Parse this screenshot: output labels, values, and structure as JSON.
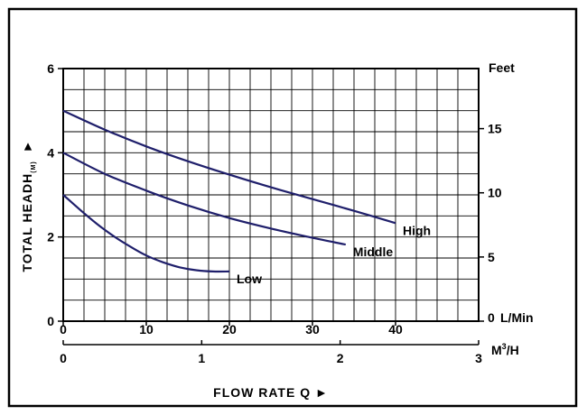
{
  "chart_data": {
    "type": "line",
    "xlabel": "FLOW RATE Q",
    "ylabel_main": "TOTAL HEADH",
    "ylabel_sub": "(M)",
    "left_axis": {
      "unit": "M",
      "range": [
        0,
        6
      ],
      "ticks": [
        {
          "value": 0,
          "label": "0"
        },
        {
          "value": 2,
          "label": "2"
        },
        {
          "value": 4,
          "label": "4"
        },
        {
          "value": 6,
          "label": "6"
        }
      ]
    },
    "right_axis": {
      "unit": "Feet",
      "range_ft": [
        0,
        19.68
      ],
      "ticks": [
        {
          "value": 0,
          "label": "0"
        },
        {
          "value": 5,
          "label": "5"
        },
        {
          "value": 10,
          "label": "10"
        },
        {
          "value": 15,
          "label": "15"
        }
      ]
    },
    "x_lmin_axis": {
      "unit": "L/Min",
      "range": [
        0,
        50
      ],
      "ticks": [
        {
          "value": 0,
          "label": "0"
        },
        {
          "value": 10,
          "label": "10"
        },
        {
          "value": 20,
          "label": "20"
        },
        {
          "value": 30,
          "label": "30"
        },
        {
          "value": 40,
          "label": "40"
        }
      ]
    },
    "x_m3h_axis": {
      "unit_main": "M",
      "unit_sup": "3",
      "unit_tail": "/H",
      "range": [
        0,
        3
      ],
      "ticks": [
        {
          "value": 0,
          "label": "0"
        },
        {
          "value": 1,
          "label": "1"
        },
        {
          "value": 2,
          "label": "2"
        },
        {
          "value": 3,
          "label": "3"
        }
      ]
    },
    "grid": true,
    "series": [
      {
        "name": "High",
        "x": [
          0,
          5,
          10,
          15,
          20,
          25,
          30,
          35,
          40
        ],
        "y": [
          5.0,
          4.55,
          4.15,
          3.8,
          3.48,
          3.18,
          2.9,
          2.62,
          2.33
        ]
      },
      {
        "name": "Middle",
        "x": [
          0,
          5,
          10,
          15,
          20,
          25,
          30,
          34
        ],
        "y": [
          4.0,
          3.5,
          3.1,
          2.75,
          2.45,
          2.2,
          1.98,
          1.82
        ]
      },
      {
        "name": "Low",
        "x": [
          0,
          2,
          4,
          6,
          8,
          10,
          12,
          14,
          16,
          18,
          20
        ],
        "y": [
          3.0,
          2.65,
          2.32,
          2.03,
          1.78,
          1.56,
          1.4,
          1.28,
          1.21,
          1.18,
          1.18
        ]
      }
    ],
    "colors": {
      "line": "#1f1f6b",
      "grid": "#000000"
    },
    "markers": {
      "arrow": "►",
      "arrow_up": "▲"
    }
  }
}
